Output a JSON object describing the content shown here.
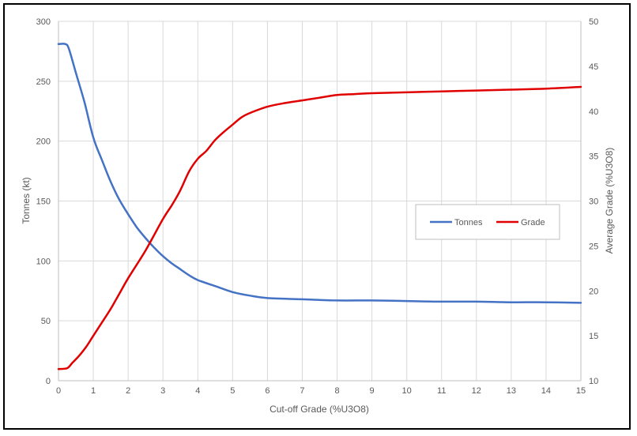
{
  "chart_data": {
    "type": "line",
    "xlabel": "Cut-off Grade (%U3O8)",
    "ylabel_left": "Tonnes (kt)",
    "ylabel_right": "Average Grade (%U3O8)",
    "xlim": [
      0,
      15
    ],
    "ylim_left": [
      0,
      300
    ],
    "ylim_right": [
      10,
      50
    ],
    "x_ticks": [
      "0",
      "1",
      "2",
      "3",
      "4",
      "5",
      "6",
      "7",
      "8",
      "9",
      "10",
      "11",
      "12",
      "13",
      "14",
      "15"
    ],
    "y_left_ticks": [
      "0",
      "50",
      "100",
      "150",
      "200",
      "250",
      "300"
    ],
    "y_right_ticks": [
      "10",
      "15",
      "20",
      "25",
      "30",
      "35",
      "40",
      "45",
      "50"
    ],
    "grid": true,
    "legend_position": "right-center",
    "series": [
      {
        "name": "Tonnes",
        "axis": "left",
        "color": "#4472C4",
        "x": [
          0,
          0.2,
          0.3,
          0.5,
          0.75,
          1,
          1.25,
          1.5,
          1.75,
          2,
          2.25,
          2.5,
          2.75,
          3,
          3.25,
          3.5,
          3.75,
          4,
          4.5,
          5,
          5.5,
          6,
          7,
          8,
          9,
          10,
          11,
          12,
          13,
          14,
          15
        ],
        "values": [
          281,
          281,
          277,
          257,
          232,
          203,
          184,
          166,
          151,
          139,
          128,
          119,
          111,
          104,
          98,
          93,
          88,
          84,
          79,
          74,
          71,
          69,
          68,
          67,
          67,
          66.5,
          66,
          66,
          65.5,
          65.5,
          65
        ]
      },
      {
        "name": "Grade",
        "axis": "right",
        "color": "#E00000",
        "x": [
          0,
          0.25,
          0.4,
          0.6,
          0.8,
          1,
          1.25,
          1.5,
          1.75,
          2,
          2.5,
          3,
          3.25,
          3.5,
          3.75,
          4,
          4.25,
          4.5,
          4.75,
          5,
          5.25,
          5.5,
          6,
          6.5,
          7,
          7.5,
          8,
          8.5,
          9,
          10,
          11,
          12,
          13,
          14,
          15
        ],
        "values": [
          11.3,
          11.4,
          12,
          12.8,
          13.8,
          15,
          16.5,
          18,
          19.7,
          21.4,
          24.5,
          28,
          29.5,
          31.2,
          33.3,
          34.7,
          35.6,
          36.8,
          37.7,
          38.5,
          39.3,
          39.8,
          40.5,
          40.9,
          41.2,
          41.5,
          41.8,
          41.9,
          42,
          42.1,
          42.2,
          42.3,
          42.4,
          42.5,
          42.7
        ]
      }
    ]
  }
}
